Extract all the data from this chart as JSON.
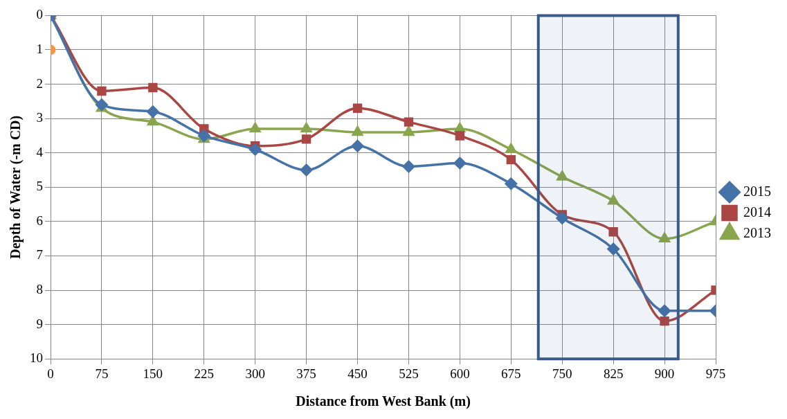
{
  "chart_data": {
    "type": "line",
    "xlabel": "Distance from West Bank (m)",
    "ylabel": "Depth of Water (-m CD)",
    "x": [
      0,
      75,
      150,
      225,
      300,
      375,
      450,
      525,
      600,
      675,
      750,
      825,
      900,
      975
    ],
    "xlim": [
      0,
      975
    ],
    "xticks": [
      0,
      75,
      150,
      225,
      300,
      375,
      450,
      525,
      600,
      675,
      750,
      825,
      900,
      975
    ],
    "ylim": [
      10,
      0
    ],
    "yticks": [
      0,
      1,
      2,
      3,
      4,
      5,
      6,
      7,
      8,
      9,
      10
    ],
    "grid": true,
    "legend": "right",
    "series": [
      {
        "name": "2015",
        "color": "#4572a7",
        "marker": "diamond",
        "values": [
          0,
          2.6,
          2.8,
          3.5,
          3.9,
          4.5,
          3.8,
          4.4,
          4.3,
          4.9,
          5.9,
          6.8,
          8.6,
          8.6
        ]
      },
      {
        "name": "2014",
        "color": "#aa4643",
        "marker": "square",
        "values": [
          0,
          2.2,
          2.1,
          3.3,
          3.8,
          3.6,
          2.7,
          3.1,
          3.5,
          4.2,
          5.8,
          6.3,
          8.9,
          8.0
        ]
      },
      {
        "name": "2013",
        "color": "#89a54e",
        "marker": "triangle",
        "values": [
          0,
          2.7,
          3.1,
          3.6,
          3.3,
          3.3,
          3.4,
          3.4,
          3.3,
          3.9,
          4.7,
          5.4,
          6.5,
          6.0
        ]
      },
      {
        "type": "scatter",
        "color": "#f79646",
        "marker": "circle",
        "x": [
          0
        ],
        "values": [
          1
        ]
      }
    ],
    "bands": [
      {
        "axis": "x",
        "from": 715,
        "to": 920,
        "color": "#375a8c"
      }
    ]
  }
}
